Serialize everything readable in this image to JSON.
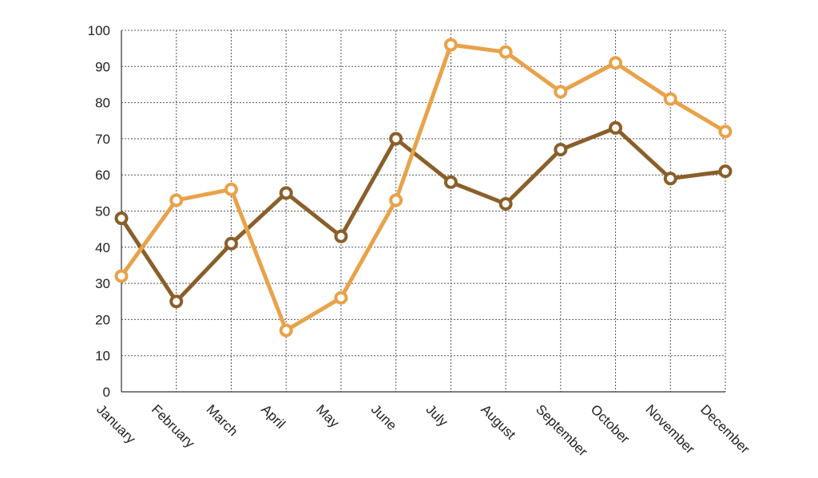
{
  "chart_data": {
    "type": "line",
    "title": "",
    "xlabel": "",
    "ylabel": "",
    "categories": [
      "January",
      "February",
      "March",
      "April",
      "May",
      "June",
      "July",
      "August",
      "September",
      "October",
      "November",
      "December"
    ],
    "ylim": [
      0,
      100
    ],
    "yticks": [
      "0",
      "10",
      "20",
      "30",
      "40",
      "50",
      "60",
      "70",
      "80",
      "90",
      "100"
    ],
    "grid": true,
    "legend": "none",
    "series": [
      {
        "color": "#8a5f2a",
        "values": [
          48,
          25,
          41,
          55,
          43,
          70,
          58,
          52,
          67,
          73,
          59,
          61
        ]
      },
      {
        "color": "#e8a24a",
        "values": [
          32,
          53,
          56,
          17,
          26,
          53,
          96,
          94,
          83,
          91,
          81,
          72
        ]
      }
    ]
  }
}
